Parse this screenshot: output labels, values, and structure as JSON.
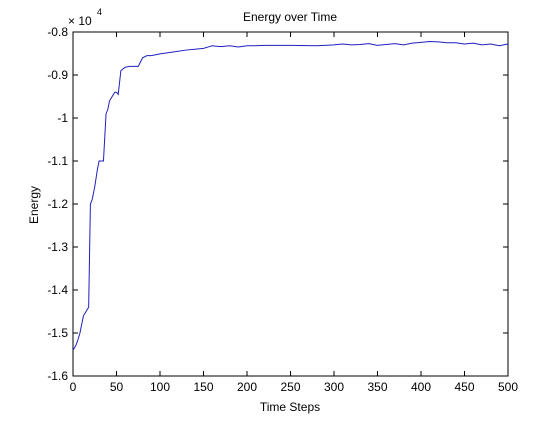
{
  "chart_data": {
    "type": "line",
    "title": "Energy over Time",
    "xlabel": "Time Steps",
    "ylabel": "Energy",
    "y_multiplier_label": "× 10",
    "y_multiplier_exponent": "4",
    "xlim": [
      0,
      500
    ],
    "ylim": [
      -1.6,
      -0.8
    ],
    "x_ticks": [
      0,
      50,
      100,
      150,
      200,
      250,
      300,
      350,
      400,
      450,
      500
    ],
    "x_tick_labels": [
      "0",
      "50",
      "100",
      "150",
      "200",
      "250",
      "300",
      "350",
      "400",
      "450",
      "500"
    ],
    "y_ticks": [
      -1.6,
      -1.5,
      -1.4,
      -1.3,
      -1.2,
      -1.1,
      -1.0,
      -0.9,
      -0.8
    ],
    "y_tick_labels": [
      "-1.6",
      "-1.5",
      "-1.4",
      "-1.3",
      "-1.2",
      "-1.1",
      "-1",
      "-0.9",
      "-0.8"
    ],
    "grid": false,
    "line_color": "#1f1fbf",
    "series": [
      {
        "x": [
          0,
          3,
          5,
          8,
          10,
          12,
          15,
          18,
          20,
          22,
          25,
          28,
          30,
          32,
          35,
          38,
          40,
          42,
          45,
          48,
          50,
          52,
          55,
          58,
          60,
          65,
          70,
          75,
          80,
          85,
          90,
          95,
          100,
          110,
          120,
          130,
          140,
          150,
          155,
          160,
          165,
          170,
          180,
          190,
          200,
          210,
          220,
          250,
          280,
          300,
          310,
          320,
          330,
          340,
          350,
          360,
          370,
          380,
          390,
          400,
          410,
          420,
          430,
          440,
          450,
          460,
          470,
          480,
          490,
          500
        ],
        "y": [
          -1.54,
          -1.53,
          -1.52,
          -1.5,
          -1.48,
          -1.46,
          -1.45,
          -1.44,
          -1.2,
          -1.19,
          -1.16,
          -1.12,
          -1.1,
          -1.1,
          -1.1,
          -0.99,
          -0.98,
          -0.96,
          -0.95,
          -0.94,
          -0.94,
          -0.945,
          -0.89,
          -0.885,
          -0.882,
          -0.88,
          -0.88,
          -0.88,
          -0.86,
          -0.855,
          -0.855,
          -0.853,
          -0.851,
          -0.848,
          -0.845,
          -0.842,
          -0.84,
          -0.838,
          -0.835,
          -0.832,
          -0.833,
          -0.834,
          -0.832,
          -0.835,
          -0.832,
          -0.832,
          -0.831,
          -0.831,
          -0.832,
          -0.83,
          -0.828,
          -0.83,
          -0.829,
          -0.827,
          -0.831,
          -0.829,
          -0.827,
          -0.83,
          -0.826,
          -0.824,
          -0.822,
          -0.823,
          -0.825,
          -0.825,
          -0.828,
          -0.826,
          -0.83,
          -0.828,
          -0.832,
          -0.828
        ]
      }
    ]
  }
}
